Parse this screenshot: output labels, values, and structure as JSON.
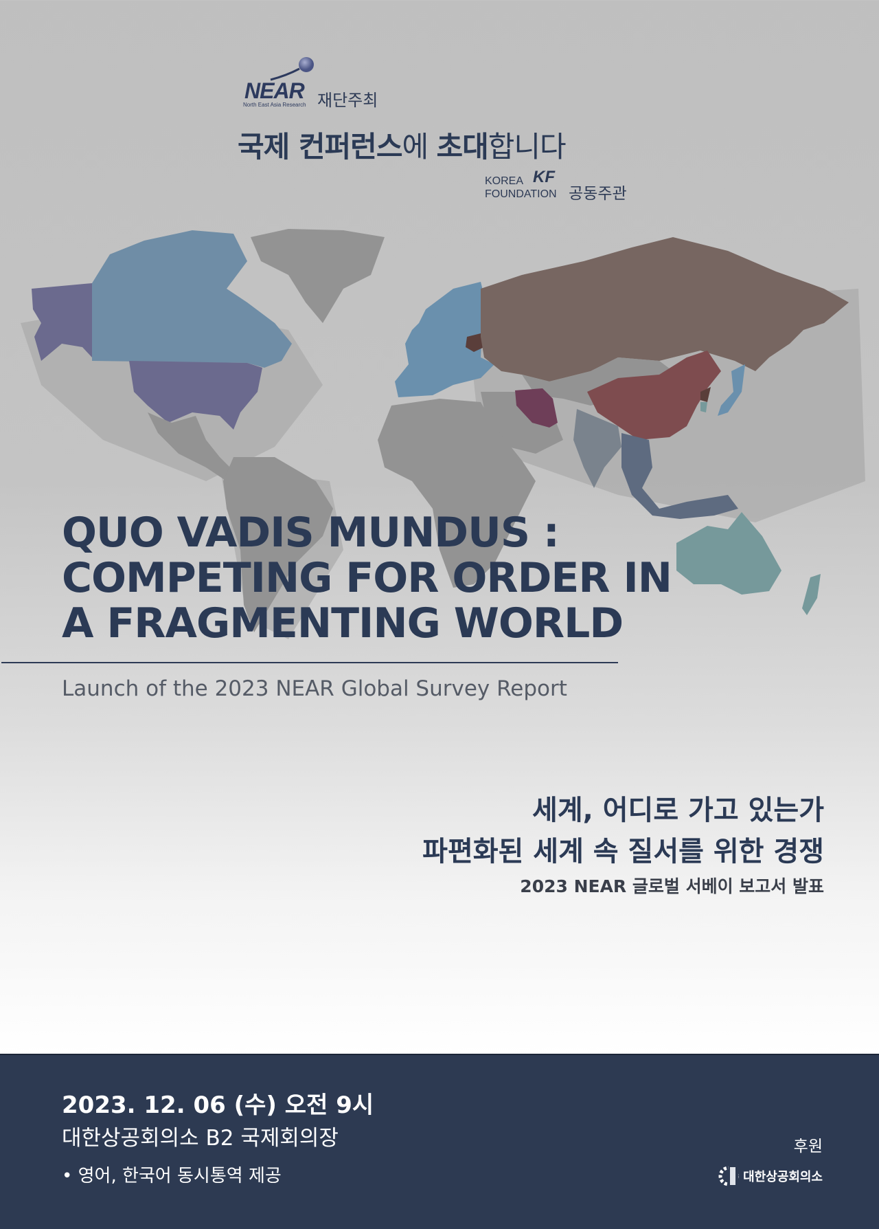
{
  "header": {
    "near_logo_text": "NEAR",
    "near_logo_subtext": "North East Asia Research",
    "host_label": "재단주최",
    "invite_bold1": "국제 컨퍼런스",
    "invite_light1": "에 ",
    "invite_bold2": "초대",
    "invite_light2": "합니다",
    "kf_logo_text_line1": "KOREA",
    "kf_logo_text_line2": "FOUNDATION",
    "kf_mark": "KF",
    "cohost_label": "공동주관"
  },
  "main": {
    "title_lines": [
      "QUO VADIS MUNDUS :",
      "COMPETING FOR ORDER IN",
      "A FRAGMENTING WORLD"
    ],
    "subtitle": "Launch of the 2023 NEAR Global Survey Report",
    "korean_title_line1": "세계, 어디로 가고 있는가",
    "korean_title_line2": "파편화된 세계 속 질서를 위한 경쟁",
    "korean_subtitle": "2023 NEAR 글로벌 서베이 보고서 발표"
  },
  "footer": {
    "datetime": "2023. 12. 06 (수) 오전 9시",
    "venue": "대한상공회의소 B2 국제회의장",
    "note": "• 영어, 한국어 동시통역 제공",
    "sponsor_label": "후원",
    "sponsor_name": "대한상공회의소"
  },
  "colors": {
    "navy": "#2d3a52",
    "map_gray": "#939393",
    "usa": "#6b6a8e",
    "canada": "#6f8da6",
    "europe": "#6a90ad",
    "russia": "#776661",
    "china": "#7e4c4f",
    "iran": "#6e3e58",
    "australia": "#76999b"
  }
}
